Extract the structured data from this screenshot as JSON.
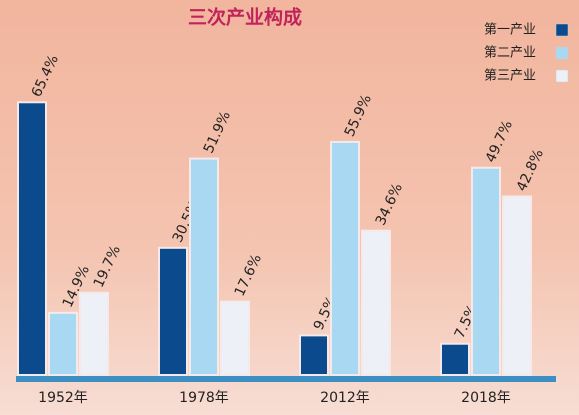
{
  "chart_data": {
    "type": "bar",
    "title": "三次产业构成",
    "categories": [
      "1952年",
      "1978年",
      "2012年",
      "2018年"
    ],
    "series": [
      {
        "name": "第一产业",
        "color": "#0b4a8c",
        "values": [
          65.4,
          30.5,
          9.5,
          7.5
        ],
        "value_labels": [
          "65.4%",
          "30.5%",
          "9.5%",
          "7.5%"
        ]
      },
      {
        "name": "第二产业",
        "color": "#a9d9f2",
        "values": [
          14.9,
          51.9,
          55.9,
          49.7
        ],
        "value_labels": [
          "14.9%",
          "51.9%",
          "55.9%",
          "49.7%"
        ]
      },
      {
        "name": "第三产业",
        "color": "#eef0f8",
        "values": [
          19.7,
          17.6,
          34.6,
          42.8
        ],
        "value_labels": [
          "19.7%",
          "17.6%",
          "34.6%",
          "42.8%"
        ]
      }
    ],
    "legend": "top-right"
  }
}
